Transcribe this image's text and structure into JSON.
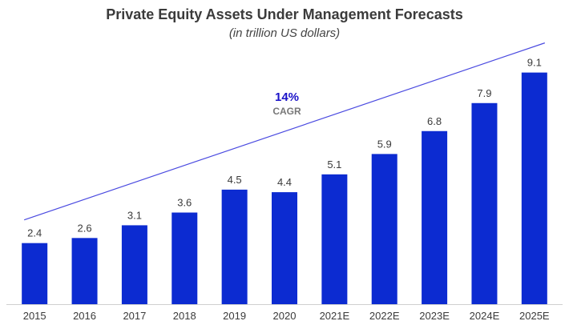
{
  "chart_data": {
    "type": "bar",
    "title": "Private Equity Assets Under Management Forecasts",
    "subtitle": "(in trillion US dollars)",
    "categories": [
      "2015",
      "2016",
      "2017",
      "2018",
      "2019",
      "2020",
      "2021E",
      "2022E",
      "2023E",
      "2024E",
      "2025E"
    ],
    "values": [
      2.4,
      2.6,
      3.1,
      3.6,
      4.5,
      4.4,
      5.1,
      5.9,
      6.8,
      7.9,
      9.1
    ],
    "data_labels": [
      "2.4",
      "2.6",
      "3.1",
      "3.6",
      "4.5",
      "4.4",
      "5.1",
      "5.9",
      "6.8",
      "7.9",
      "9.1"
    ],
    "ylim": [
      0,
      10
    ],
    "grid": false,
    "annotation": {
      "value": "14%",
      "label": "CAGR"
    },
    "colors": {
      "bar": "#0c2bd1",
      "trend_line": "#4a4ae0",
      "cagr_value": "#1a12c8"
    }
  }
}
